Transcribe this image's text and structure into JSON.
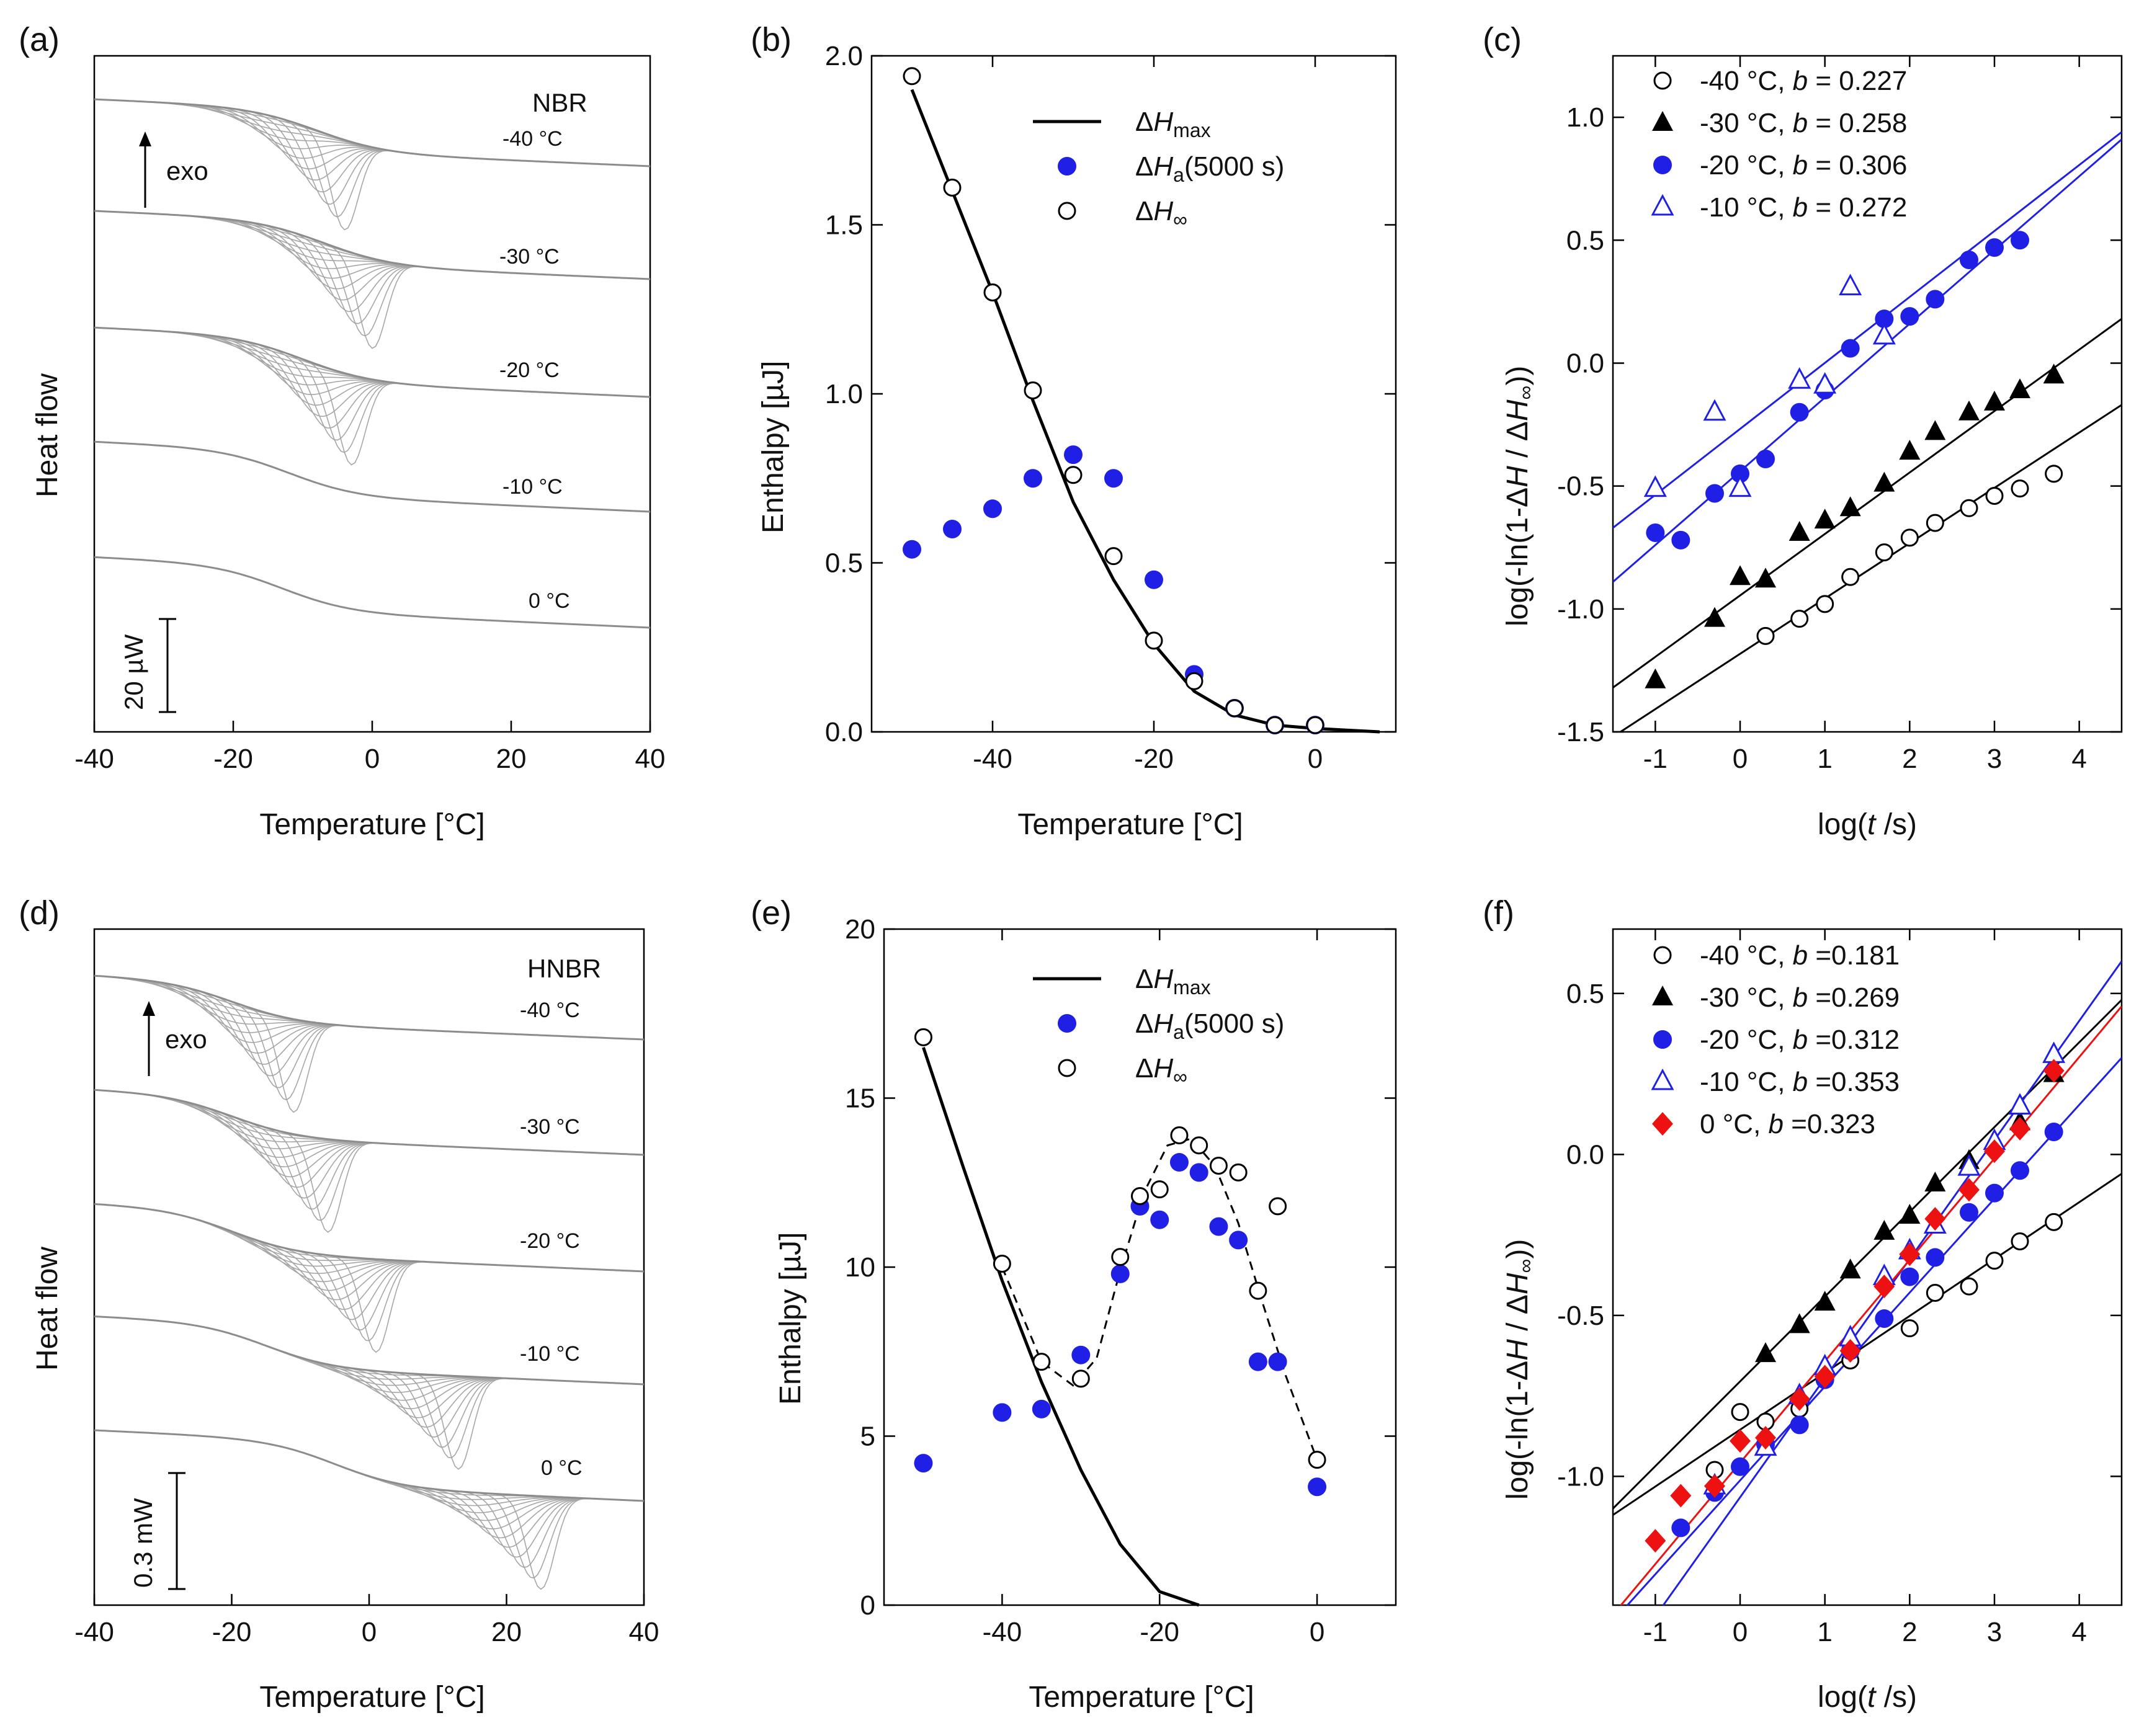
{
  "panels": {
    "a": {
      "label": "(a)",
      "material": "NBR",
      "exo": "exo",
      "scale": "20 µW",
      "ylabel": "Heat flow",
      "xlabel": "Temperature [°C]",
      "xticks": [
        "-40",
        "-20",
        "0",
        "20",
        "40"
      ],
      "temps": [
        "-40 °C",
        "-30 °C",
        "-20 °C",
        "-10 °C",
        "0 °C"
      ]
    },
    "b": {
      "label": "(b)"
    },
    "c": {
      "label": "(c)"
    },
    "d": {
      "label": "(d)",
      "material": "HNBR",
      "exo": "exo",
      "scale": "0.3 mW",
      "ylabel": "Heat flow",
      "xlabel": "Temperature [°C]",
      "xticks": [
        "-40",
        "-20",
        "0",
        "20",
        "40"
      ],
      "temps": [
        "-40 °C",
        "-30 °C",
        "-20 °C",
        "-10 °C",
        "0 °C"
      ]
    },
    "e": {
      "label": "(e)"
    },
    "f": {
      "label": "(f)"
    }
  },
  "chart_data": [
    {
      "id": "a",
      "type": "line",
      "title": "",
      "annotation": "NBR",
      "xlabel": "Temperature [°C]",
      "ylabel": "Heat flow",
      "xlim": [
        -40,
        40
      ],
      "curves": [
        {
          "temp": "-40 °C",
          "peak_T": -4,
          "shift_T": -8
        },
        {
          "temp": "-30 °C",
          "peak_T": 0,
          "shift_T": -7
        },
        {
          "temp": "-20 °C",
          "peak_T": -3,
          "shift_T": -10
        },
        {
          "temp": "-10 °C",
          "peak_T": null,
          "shift_T": -12
        },
        {
          "temp": "0 °C",
          "peak_T": null,
          "shift_T": -13
        }
      ]
    },
    {
      "id": "b",
      "type": "scatter",
      "xlabel": "Temperature [°C]",
      "ylabel": "Enthalpy [µJ]",
      "xlim": [
        -55,
        10
      ],
      "ylim": [
        0,
        2.0
      ],
      "xticks": [
        -40,
        -20,
        0
      ],
      "yticks": [
        0.0,
        0.5,
        1.0,
        1.5,
        2.0
      ],
      "ytick_labels": [
        "0.0",
        "0.5",
        "1.0",
        "1.5",
        "2.0"
      ],
      "legend": [
        {
          "name": "ΔH",
          "sub": "max",
          "marker": "line"
        },
        {
          "name": "ΔH",
          "sub": "a",
          "suffix": "(5000 s)",
          "marker": "filled-circle",
          "color": "#1f1fe6"
        },
        {
          "name": "ΔH",
          "sub": "∞",
          "marker": "open-circle"
        }
      ],
      "series": [
        {
          "name": "ΔHmax",
          "style": "line",
          "x": [
            -50,
            -45,
            -40,
            -35,
            -30,
            -25,
            -20,
            -15,
            -10,
            -5,
            0,
            8
          ],
          "y": [
            1.9,
            1.6,
            1.3,
            0.98,
            0.68,
            0.45,
            0.26,
            0.12,
            0.05,
            0.02,
            0.01,
            0.0
          ]
        },
        {
          "name": "ΔHa(5000 s)",
          "style": "filled-circle",
          "color": "#1f1fe6",
          "x": [
            -50,
            -45,
            -40,
            -35,
            -30,
            -25,
            -20,
            -15,
            -10,
            -5,
            0
          ],
          "y": [
            0.54,
            0.6,
            0.66,
            0.75,
            0.82,
            0.75,
            0.45,
            0.17,
            0.07,
            0.02,
            0.02
          ]
        },
        {
          "name": "ΔH∞",
          "style": "open-circle",
          "x": [
            -50,
            -45,
            -40,
            -35,
            -30,
            -25,
            -20,
            -15,
            -10,
            -5,
            0
          ],
          "y": [
            1.94,
            1.61,
            1.3,
            1.01,
            0.76,
            0.52,
            0.27,
            0.15,
            0.07,
            0.02,
            0.02
          ]
        }
      ]
    },
    {
      "id": "c",
      "type": "scatter",
      "xlabel": "log(t /s)",
      "ylabel": "log(-ln(1-ΔH / ΔH∞))",
      "xlim": [
        -1.5,
        4.5
      ],
      "ylim": [
        -1.5,
        1.25
      ],
      "xticks": [
        -1,
        0,
        1,
        2,
        3,
        4
      ],
      "yticks": [
        -1.5,
        -1.0,
        -0.5,
        0.0,
        0.5,
        1.0
      ],
      "ytick_labels": [
        "-1.5",
        "-1.0",
        "-0.5",
        "0.0",
        "0.5",
        "1.0"
      ],
      "legend": [
        {
          "temp": "-40 °C,",
          "b": "b = 0.227",
          "marker": "open-circle",
          "color": "#000000"
        },
        {
          "temp": "-30 °C,",
          "b": "b = 0.258",
          "marker": "filled-triangle",
          "color": "#000000"
        },
        {
          "temp": "-20 °C,",
          "b": "b = 0.306",
          "marker": "filled-circle",
          "color": "#1f1fe6"
        },
        {
          "temp": "-10 °C,",
          "b": "b = 0.272",
          "marker": "open-triangle",
          "color": "#1f1fe6"
        }
      ],
      "series": [
        {
          "name": "-40 °C",
          "marker": "open-circle",
          "color": "#000000",
          "x": [
            0.3,
            0.7,
            1.0,
            1.3,
            1.7,
            2.0,
            2.3,
            2.7,
            3.0,
            3.3,
            3.7
          ],
          "y": [
            -1.11,
            -1.04,
            -0.98,
            -0.87,
            -0.77,
            -0.71,
            -0.65,
            -0.59,
            -0.54,
            -0.51,
            -0.45
          ],
          "fit": [
            [
              -1.5,
              -1.52
            ],
            [
              4.5,
              -0.17
            ]
          ]
        },
        {
          "name": "-30 °C",
          "marker": "filled-triangle",
          "color": "#000000",
          "x": [
            -1.0,
            -0.3,
            0.0,
            0.3,
            0.7,
            1.0,
            1.3,
            1.7,
            2.0,
            2.3,
            2.7,
            3.0,
            3.3,
            3.7
          ],
          "y": [
            -1.29,
            -1.04,
            -0.87,
            -0.88,
            -0.69,
            -0.64,
            -0.59,
            -0.49,
            -0.36,
            -0.28,
            -0.2,
            -0.16,
            -0.11,
            -0.05
          ],
          "fit": [
            [
              -1.5,
              -1.32
            ],
            [
              4.5,
              0.18
            ]
          ]
        },
        {
          "name": "-20 °C",
          "marker": "filled-circle",
          "color": "#1f1fe6",
          "x": [
            -1.0,
            -0.7,
            -0.3,
            0.0,
            0.3,
            0.7,
            1.0,
            1.3,
            1.7,
            2.0,
            2.3,
            2.7,
            3.0,
            3.3
          ],
          "y": [
            -0.69,
            -0.72,
            -0.53,
            -0.45,
            -0.39,
            -0.2,
            -0.11,
            0.06,
            0.18,
            0.19,
            0.26,
            0.42,
            0.47,
            0.5
          ],
          "fit": [
            [
              -1.5,
              -0.89
            ],
            [
              4.5,
              0.91
            ]
          ]
        },
        {
          "name": "-10 °C",
          "marker": "open-triangle",
          "color": "#1f1fe6",
          "x": [
            -1.0,
            -0.3,
            0.0,
            0.7,
            1.0,
            1.3,
            1.7
          ],
          "y": [
            -0.51,
            -0.2,
            -0.51,
            -0.07,
            -0.09,
            0.31,
            0.11
          ],
          "fit": [
            [
              -1.5,
              -0.67
            ],
            [
              4.5,
              0.94
            ]
          ]
        }
      ]
    },
    {
      "id": "d",
      "type": "line",
      "annotation": "HNBR",
      "xlabel": "Temperature [°C]",
      "ylabel": "Heat flow",
      "xlim": [
        -40,
        40
      ],
      "curves": [
        {
          "temp": "-40 °C",
          "peak_T": -11,
          "shift_T": -20
        },
        {
          "temp": "-30 °C",
          "peak_T": -6,
          "shift_T": -20
        },
        {
          "temp": "-20 °C",
          "peak_T": 1,
          "shift_T": -20
        },
        {
          "temp": "-10 °C",
          "peak_T": 13,
          "shift_T": -15
        },
        {
          "temp": "0 °C",
          "peak_T": 25,
          "shift_T": -5
        }
      ]
    },
    {
      "id": "e",
      "type": "scatter",
      "xlabel": "Temperature [°C]",
      "ylabel": "Enthalpy [µJ]",
      "xlim": [
        -55,
        10
      ],
      "ylim": [
        0,
        20
      ],
      "xticks": [
        -40,
        -20,
        0
      ],
      "yticks": [
        0,
        5,
        10,
        15,
        20
      ],
      "ytick_labels": [
        "0",
        "5",
        "10",
        "15",
        "20"
      ],
      "legend": [
        {
          "name": "ΔH",
          "sub": "max",
          "marker": "line"
        },
        {
          "name": "ΔH",
          "sub": "a",
          "suffix": "(5000 s)",
          "marker": "filled-circle",
          "color": "#1f1fe6"
        },
        {
          "name": "ΔH",
          "sub": "∞",
          "marker": "open-circle"
        }
      ],
      "series": [
        {
          "name": "ΔHmax",
          "style": "line",
          "x": [
            -50,
            -45,
            -40,
            -35,
            -30,
            -25,
            -20,
            -15
          ],
          "y": [
            16.5,
            13.0,
            9.6,
            6.6,
            4.0,
            1.8,
            0.4,
            0.0
          ]
        },
        {
          "name": "ΔHa(5000 s)",
          "style": "filled-circle",
          "color": "#1f1fe6",
          "x": [
            -50,
            -40,
            -35,
            -30,
            -25,
            -22.5,
            -20,
            -17.5,
            -15,
            -12.5,
            -10,
            -7.5,
            -5,
            0
          ],
          "y": [
            4.2,
            5.7,
            5.8,
            7.4,
            9.8,
            11.8,
            11.4,
            13.1,
            12.8,
            11.2,
            10.8,
            7.2,
            7.2,
            3.5
          ]
        },
        {
          "name": "ΔH∞",
          "style": "open-circle",
          "x": [
            -50,
            -40,
            -35,
            -30,
            -25,
            -22.5,
            -20,
            -17.5,
            -15,
            -12.5,
            -10,
            -7.5,
            -5,
            0
          ],
          "y": [
            16.8,
            10.1,
            7.2,
            6.7,
            10.3,
            12.1,
            12.3,
            13.9,
            13.6,
            13.0,
            12.8,
            9.3,
            11.8,
            4.3
          ]
        },
        {
          "name": "trend",
          "style": "dashed",
          "x": [
            -40,
            -35,
            -31,
            -28,
            -25,
            -22,
            -19,
            -16,
            -13,
            -10,
            -7,
            -4,
            0
          ],
          "y": [
            10.0,
            7.2,
            6.5,
            7.3,
            9.9,
            12.2,
            13.6,
            13.8,
            13.0,
            11.3,
            9.0,
            6.8,
            4.3
          ]
        }
      ]
    },
    {
      "id": "f",
      "type": "scatter",
      "xlabel": "log(t /s)",
      "ylabel": "log(-ln(1-ΔH / ΔH∞))",
      "xlim": [
        -1.5,
        4.5
      ],
      "ylim": [
        -1.4,
        0.7
      ],
      "xticks": [
        -1,
        0,
        1,
        2,
        3,
        4
      ],
      "yticks": [
        -1.0,
        -0.5,
        0.0,
        0.5
      ],
      "ytick_labels": [
        "-1.0",
        "-0.5",
        "0.0",
        "0.5"
      ],
      "legend": [
        {
          "temp": "-40 °C,",
          "b": "b =0.181",
          "marker": "open-circle",
          "color": "#000000"
        },
        {
          "temp": "-30 °C,",
          "b": "b =0.269",
          "marker": "filled-triangle",
          "color": "#000000"
        },
        {
          "temp": "-20 °C,",
          "b": "b =0.312",
          "marker": "filled-circle",
          "color": "#1f1fe6"
        },
        {
          "temp": "-10 °C,",
          "b": "b =0.353",
          "marker": "open-triangle",
          "color": "#1f1fe6"
        },
        {
          "temp": "0 °C,",
          "b": "b =0.323",
          "marker": "filled-diamond",
          "color": "#ee1111"
        }
      ],
      "series": [
        {
          "name": "-40 °C",
          "marker": "open-circle",
          "color": "#000000",
          "x": [
            -0.3,
            0.0,
            0.3,
            0.7,
            1.0,
            1.3,
            2.0,
            2.3,
            2.7,
            3.0,
            3.3,
            3.7
          ],
          "y": [
            -0.98,
            -0.8,
            -0.83,
            -0.79,
            -0.7,
            -0.64,
            -0.54,
            -0.43,
            -0.41,
            -0.33,
            -0.27,
            -0.21
          ],
          "fit": [
            [
              -1.5,
              -1.12
            ],
            [
              4.5,
              -0.06
            ]
          ]
        },
        {
          "name": "-30 °C",
          "marker": "filled-triangle",
          "color": "#000000",
          "x": [
            0.3,
            0.7,
            1.0,
            1.3,
            1.7,
            2.0,
            2.3,
            2.7,
            3.0,
            3.3,
            3.7
          ],
          "y": [
            -0.62,
            -0.53,
            -0.46,
            -0.36,
            -0.24,
            -0.19,
            -0.09,
            -0.02,
            0.04,
            0.1,
            0.25
          ],
          "fit": [
            [
              -1.5,
              -1.1
            ],
            [
              4.5,
              0.48
            ]
          ]
        },
        {
          "name": "-20 °C",
          "marker": "filled-circle",
          "color": "#1f1fe6",
          "x": [
            -0.7,
            -0.3,
            0.0,
            0.3,
            0.7,
            1.0,
            1.3,
            1.7,
            2.0,
            2.3,
            2.7,
            3.0,
            3.3,
            3.7
          ],
          "y": [
            -1.16,
            -1.05,
            -0.97,
            -0.9,
            -0.84,
            -0.7,
            -0.61,
            -0.51,
            -0.38,
            -0.32,
            -0.18,
            -0.12,
            -0.05,
            0.07
          ],
          "fit": [
            [
              -1.5,
              -1.45
            ],
            [
              4.5,
              0.3
            ]
          ]
        },
        {
          "name": "-10 °C",
          "marker": "open-triangle",
          "color": "#1f1fe6",
          "x": [
            -0.3,
            0.3,
            0.7,
            1.0,
            1.3,
            1.7,
            2.0,
            2.3,
            2.7,
            3.0,
            3.3,
            3.7
          ],
          "y": [
            -1.03,
            -0.91,
            -0.75,
            -0.66,
            -0.57,
            -0.38,
            -0.3,
            -0.22,
            -0.04,
            0.04,
            0.15,
            0.31
          ],
          "fit": [
            [
              -1.5,
              -1.62
            ],
            [
              4.5,
              0.6
            ]
          ]
        },
        {
          "name": "0 °C",
          "marker": "filled-diamond",
          "color": "#ee1111",
          "x": [
            -1.0,
            -0.7,
            -0.3,
            0.0,
            0.3,
            0.7,
            1.0,
            1.3,
            1.7,
            2.0,
            2.3,
            2.7,
            3.0,
            3.3,
            3.7
          ],
          "y": [
            -1.2,
            -1.06,
            -1.03,
            -0.89,
            -0.88,
            -0.76,
            -0.69,
            -0.61,
            -0.41,
            -0.31,
            -0.2,
            -0.11,
            0.01,
            0.08,
            0.26
          ],
          "fit": [
            [
              -1.5,
              -1.43
            ],
            [
              4.5,
              0.46
            ]
          ]
        }
      ]
    }
  ]
}
